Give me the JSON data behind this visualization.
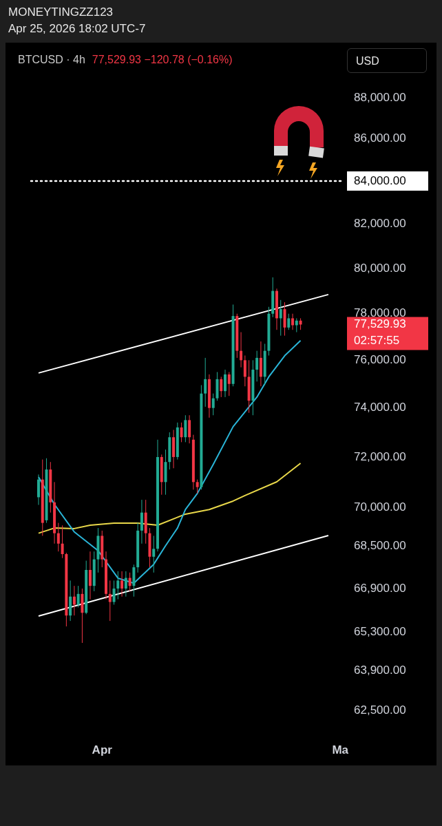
{
  "chart_data": {
    "type": "candlestick",
    "title": "MONEYTINGZZ123",
    "subtitle": "Apr 25, 2026 18:02 UTC-7",
    "annotations": [
      "BTCUSD · 4h",
      "77,529.93 −120.78 (−0.16%)",
      "USD",
      "77,529.93",
      "02:57:55"
    ],
    "categories": [
      null,
      null,
      null,
      null,
      null,
      null,
      null,
      null,
      null,
      null,
      null,
      null,
      null,
      null,
      null,
      null,
      "Apr",
      null,
      null,
      null,
      null,
      null,
      null,
      null,
      null,
      null,
      null,
      null,
      null,
      null,
      null,
      null,
      null,
      null,
      null,
      null,
      null,
      null,
      null,
      null,
      null,
      null,
      null,
      null,
      null,
      null,
      null,
      null,
      null,
      null,
      null,
      null,
      null,
      null,
      null,
      null,
      null,
      null,
      null,
      null,
      null,
      null,
      null,
      null,
      null,
      null,
      null,
      null,
      null,
      null,
      null,
      null,
      null,
      null,
      null,
      null,
      "Ma",
      null
    ],
    "ohlc": [
      [
        70400,
        71300,
        70100,
        71100
      ],
      [
        71100,
        71900,
        68900,
        69400
      ],
      [
        69500,
        71950,
        69400,
        71500
      ],
      [
        71500,
        71800,
        69800,
        70200
      ],
      [
        70200,
        71000,
        68600,
        69000
      ],
      [
        69000,
        69400,
        68300,
        68600
      ],
      [
        68600,
        69300,
        68050,
        68200
      ],
      [
        68200,
        68250,
        65500,
        65900
      ],
      [
        65900,
        67200,
        65700,
        66600
      ],
      [
        66600,
        67000,
        65900,
        66300
      ],
      [
        66300,
        67000,
        66200,
        66700
      ],
      [
        66700,
        66900,
        64900,
        66000
      ],
      [
        66000,
        67950,
        65950,
        67600
      ],
      [
        67600,
        68300,
        66500,
        67000
      ],
      [
        67000,
        68300,
        66800,
        68000
      ],
      [
        68000,
        69200,
        67500,
        68900
      ],
      [
        68900,
        69100,
        67700,
        68000
      ],
      [
        68000,
        68300,
        66500,
        66700
      ],
      [
        66700,
        67200,
        65700,
        66400
      ],
      [
        66400,
        67200,
        66300,
        66900
      ],
      [
        66900,
        67550,
        66500,
        67200
      ],
      [
        67200,
        67550,
        66600,
        66900
      ],
      [
        66900,
        67550,
        66600,
        67300
      ],
      [
        67300,
        67500,
        66800,
        67000
      ],
      [
        67000,
        67800,
        66600,
        67700
      ],
      [
        67700,
        69400,
        67500,
        69100
      ],
      [
        69100,
        70300,
        68600,
        69800
      ],
      [
        69800,
        70300,
        68600,
        69000
      ],
      [
        69000,
        69200,
        67700,
        68100
      ],
      [
        68100,
        68900,
        67500,
        68400
      ],
      [
        68400,
        72700,
        68300,
        72000
      ],
      [
        72000,
        72100,
        70500,
        71000
      ],
      [
        71000,
        72300,
        70500,
        71800
      ],
      [
        71800,
        73000,
        71500,
        72800
      ],
      [
        72800,
        73100,
        71550,
        72000
      ],
      [
        72000,
        73400,
        71900,
        73200
      ],
      [
        73200,
        73400,
        72600,
        72800
      ],
      [
        72800,
        73700,
        72600,
        73500
      ],
      [
        73500,
        73700,
        72550,
        72800
      ],
      [
        72700,
        72900,
        70700,
        71000
      ],
      [
        71000,
        71100,
        70550,
        70800
      ],
      [
        70800,
        74950,
        70700,
        74600
      ],
      [
        74600,
        76100,
        74050,
        75200
      ],
      [
        75200,
        75400,
        73600,
        74000
      ],
      [
        74000,
        74600,
        73700,
        74400
      ],
      [
        74400,
        75500,
        74300,
        75200
      ],
      [
        75200,
        75300,
        74450,
        74700
      ],
      [
        74700,
        75600,
        74450,
        75400
      ],
      [
        75400,
        75500,
        74500,
        75000
      ],
      [
        75000,
        78400,
        74900,
        77900
      ],
      [
        77900,
        78000,
        76100,
        76400
      ],
      [
        76400,
        77200,
        75700,
        76000
      ],
      [
        76000,
        76200,
        74900,
        75300
      ],
      [
        75300,
        76000,
        73800,
        74300
      ],
      [
        74300,
        76000,
        73700,
        75600
      ],
      [
        75600,
        76400,
        75100,
        76100
      ],
      [
        76100,
        76800,
        74900,
        75300
      ],
      [
        75300,
        76700,
        74950,
        76400
      ],
      [
        76400,
        78300,
        76200,
        78000
      ],
      [
        78000,
        79600,
        77850,
        79000
      ],
      [
        79000,
        79100,
        77300,
        77800
      ],
      [
        77800,
        78600,
        77050,
        78200
      ],
      [
        78200,
        78500,
        77050,
        77400
      ],
      [
        77400,
        78000,
        77300,
        77800
      ],
      [
        77800,
        78000,
        77300,
        77500
      ],
      [
        77500,
        77800,
        77200,
        77700
      ],
      [
        77700,
        77800,
        77300,
        77529.93
      ],
      null,
      null,
      null,
      null,
      null,
      null,
      null,
      null,
      null,
      null,
      null
    ],
    "series": [
      {
        "type": "line",
        "color": "#2ab5d8",
        "values": [
          71200,
          null,
          null,
          null,
          70120,
          null,
          null,
          null,
          null,
          69050,
          null,
          null,
          null,
          null,
          null,
          68330,
          null,
          null,
          null,
          null,
          67290,
          null,
          null,
          null,
          67100,
          null,
          null,
          null,
          null,
          67810,
          null,
          null,
          68520,
          null,
          null,
          69200,
          null,
          69920,
          null,
          null,
          70550,
          null,
          null,
          null,
          71700,
          null,
          null,
          null,
          null,
          73230,
          null,
          null,
          null,
          null,
          null,
          74450,
          null,
          null,
          75300,
          null,
          null,
          null,
          76190,
          null,
          null,
          null,
          76840,
          null,
          null,
          null,
          null,
          null,
          null,
          null,
          null,
          null,
          null,
          null
        ]
      },
      {
        "type": "line",
        "color": "#e9d84a",
        "values": [
          69000,
          null,
          null,
          null,
          69200,
          null,
          null,
          null,
          null,
          69180,
          null,
          null,
          null,
          69310,
          null,
          null,
          null,
          null,
          null,
          69390,
          null,
          null,
          null,
          null,
          null,
          69390,
          null,
          null,
          null,
          null,
          69310,
          null,
          null,
          null,
          null,
          null,
          null,
          69740,
          null,
          null,
          null,
          null,
          null,
          69920,
          null,
          null,
          null,
          null,
          null,
          70250,
          null,
          null,
          70470,
          null,
          null,
          null,
          null,
          null,
          null,
          null,
          71010,
          null,
          null,
          null,
          null,
          null,
          71750,
          null,
          null,
          null,
          null,
          null,
          null,
          null,
          null,
          null,
          null,
          null
        ]
      },
      {
        "type": "line",
        "color": "#ffffff",
        "values": [
          75460,
          null,
          null,
          null,
          null,
          null,
          null,
          null,
          null,
          null,
          null,
          null,
          null,
          null,
          null,
          null,
          null,
          null,
          null,
          null,
          null,
          null,
          null,
          null,
          null,
          null,
          null,
          null,
          null,
          null,
          null,
          null,
          null,
          null,
          null,
          null,
          null,
          null,
          null,
          null,
          null,
          null,
          null,
          null,
          null,
          null,
          null,
          null,
          null,
          null,
          null,
          null,
          null,
          null,
          null,
          null,
          null,
          null,
          null,
          null,
          null,
          null,
          null,
          null,
          null,
          null,
          null,
          null,
          null,
          null,
          null,
          null,
          null,
          78840,
          null,
          null,
          null,
          null
        ]
      },
      {
        "type": "line",
        "color": "#ffffff",
        "values": [
          65880,
          null,
          null,
          null,
          null,
          null,
          null,
          null,
          null,
          null,
          null,
          null,
          null,
          null,
          null,
          null,
          null,
          null,
          null,
          null,
          null,
          null,
          null,
          null,
          null,
          null,
          null,
          null,
          null,
          null,
          null,
          null,
          null,
          null,
          null,
          null,
          null,
          null,
          null,
          null,
          null,
          null,
          null,
          null,
          null,
          null,
          null,
          null,
          null,
          null,
          null,
          null,
          null,
          null,
          null,
          null,
          null,
          null,
          null,
          null,
          null,
          null,
          null,
          null,
          null,
          null,
          null,
          null,
          null,
          null,
          null,
          null,
          null,
          68910,
          null,
          null,
          null,
          null
        ]
      }
    ],
    "ref_lines": [
      {
        "axis": "y",
        "value": 84000,
        "color": "#ffffff",
        "line_style": "dotted"
      }
    ],
    "log": "y",
    "grid": false,
    "legend": false,
    "marker": "none",
    "line_style": "solid",
    "ylim": [
      62500,
      88000
    ],
    "yticks": [
      {
        "value": 88000,
        "label": "88,000.00"
      },
      {
        "value": 86000,
        "label": "86,000.00"
      },
      {
        "value": 84000,
        "label": "84,000.00"
      },
      {
        "value": 82000,
        "label": "82,000.00"
      },
      {
        "value": 80000,
        "label": "80,000.00"
      },
      {
        "value": 78000,
        "label": "78,000.00"
      },
      {
        "value": 76000,
        "label": "76,000.00"
      },
      {
        "value": 74000,
        "label": "74,000.00"
      },
      {
        "value": 72000,
        "label": "72,000.00"
      },
      {
        "value": 70000,
        "label": "70,000.00"
      },
      {
        "value": 68500,
        "label": "68,500.00"
      },
      {
        "value": 66900,
        "label": "66,900.00"
      },
      {
        "value": 65300,
        "label": "65,300.00"
      },
      {
        "value": 63900,
        "label": "63,900.00"
      },
      {
        "value": 62500,
        "label": "62,500.00"
      }
    ]
  }
}
